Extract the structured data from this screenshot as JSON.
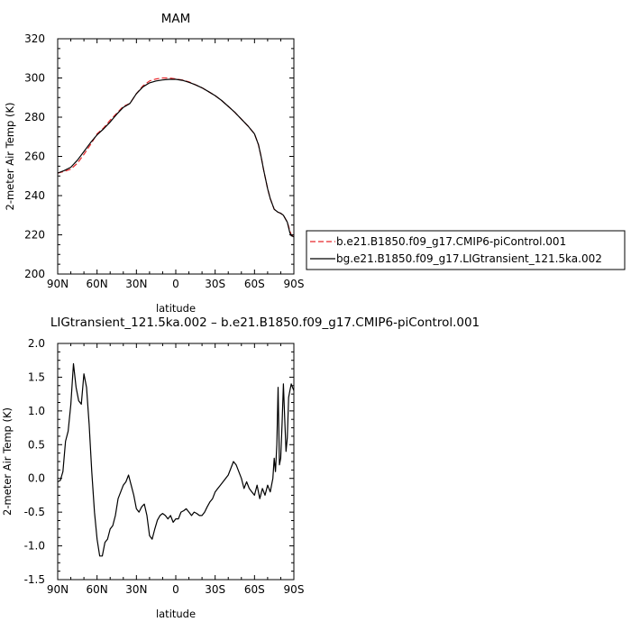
{
  "chart_data": [
    {
      "type": "line",
      "title": "MAM",
      "xlabel": "latitude",
      "ylabel": "2-meter Air Temp (K)",
      "x_unit": "degrees latitude (positive = N, negative = S)",
      "xlim": [
        90,
        -90
      ],
      "ylim": [
        200,
        320
      ],
      "xticks": [
        {
          "value": 90,
          "label": "90N"
        },
        {
          "value": 60,
          "label": "60N"
        },
        {
          "value": 30,
          "label": "30N"
        },
        {
          "value": 0,
          "label": "0"
        },
        {
          "value": -30,
          "label": "30S"
        },
        {
          "value": -60,
          "label": "60S"
        },
        {
          "value": -90,
          "label": "90S"
        }
      ],
      "yticks": [
        200,
        220,
        240,
        260,
        280,
        300,
        320
      ],
      "grid": false,
      "legend_position": "right",
      "series": [
        {
          "name": "b.e21.B1850.f09_g17.CMIP6-piControl.001",
          "color": "#e8262a",
          "dash": "dashed",
          "x": [
            90,
            85,
            80,
            75,
            70,
            65,
            60,
            55,
            50,
            45,
            40,
            35,
            30,
            25,
            20,
            15,
            10,
            5,
            0,
            -5,
            -10,
            -15,
            -20,
            -25,
            -30,
            -35,
            -40,
            -45,
            -50,
            -55,
            -60,
            -63,
            -65,
            -67,
            -70,
            -72,
            -75,
            -78,
            -80,
            -82,
            -85,
            -87,
            -88,
            -90
          ],
          "y": [
            251.5,
            252.3,
            253.5,
            256.5,
            261.0,
            266.0,
            271.5,
            274.5,
            278.5,
            282.0,
            285.5,
            287.0,
            292.0,
            296.0,
            298.5,
            299.5,
            300.0,
            300.0,
            299.5,
            299.0,
            298.0,
            296.5,
            295.0,
            293.0,
            291.0,
            288.5,
            285.5,
            282.5,
            279.0,
            275.5,
            271.5,
            266.0,
            260.0,
            253.0,
            243.5,
            238.5,
            233.0,
            231.5,
            231.0,
            230.0,
            226.5,
            222.0,
            220.0,
            219.5
          ]
        },
        {
          "name": "bg.e21.B1850.f09_g17.LIGtransient_121.5ka.002",
          "color": "#000000",
          "dash": "solid",
          "x": [
            90,
            85,
            80,
            75,
            70,
            65,
            60,
            55,
            50,
            45,
            40,
            35,
            30,
            25,
            20,
            15,
            10,
            5,
            0,
            -5,
            -10,
            -15,
            -20,
            -25,
            -30,
            -35,
            -40,
            -45,
            -50,
            -55,
            -60,
            -63,
            -65,
            -67,
            -70,
            -72,
            -75,
            -78,
            -80,
            -82,
            -85,
            -87,
            -88,
            -90
          ],
          "y": [
            251.5,
            252.8,
            254.5,
            258.0,
            262.5,
            267.0,
            271.0,
            274.0,
            277.5,
            281.5,
            285.0,
            287.0,
            292.0,
            295.5,
            297.5,
            298.5,
            299.0,
            299.3,
            299.3,
            298.8,
            297.8,
            296.5,
            295.0,
            293.0,
            291.0,
            288.5,
            285.5,
            282.5,
            279.0,
            275.5,
            271.5,
            266.0,
            260.0,
            253.0,
            243.5,
            238.5,
            233.0,
            231.5,
            231.0,
            230.0,
            226.5,
            221.0,
            219.5,
            219.0
          ]
        }
      ]
    },
    {
      "type": "line",
      "title": "LIGtransient_121.5ka.002 – b.e21.B1850.f09_g17.CMIP6-piControl.001",
      "xlabel": "latitude",
      "ylabel": "2-meter Air Temp (K)",
      "x_unit": "degrees latitude (positive = N, negative = S)",
      "xlim": [
        90,
        -90
      ],
      "ylim": [
        -1.5,
        2.0
      ],
      "xticks": [
        {
          "value": 90,
          "label": "90N"
        },
        {
          "value": 60,
          "label": "60N"
        },
        {
          "value": 30,
          "label": "30N"
        },
        {
          "value": 0,
          "label": "0"
        },
        {
          "value": -30,
          "label": "30S"
        },
        {
          "value": -60,
          "label": "60S"
        },
        {
          "value": -90,
          "label": "90S"
        }
      ],
      "yticks": [
        {
          "value": -1.5,
          "label": "-1.5"
        },
        {
          "value": -1.0,
          "label": "-1.0"
        },
        {
          "value": -0.5,
          "label": "-0.5"
        },
        {
          "value": 0.0,
          "label": "0.0"
        },
        {
          "value": 0.5,
          "label": "0.5"
        },
        {
          "value": 1.0,
          "label": "1.0"
        },
        {
          "value": 1.5,
          "label": "1.5"
        },
        {
          "value": 2.0,
          "label": "2.0"
        }
      ],
      "grid": false,
      "series": [
        {
          "color": "#000000",
          "dash": "solid",
          "x": [
            90,
            88,
            86,
            84,
            82,
            80,
            78,
            76,
            74,
            72,
            70,
            68,
            66,
            64,
            62,
            60,
            58,
            56,
            54,
            52,
            50,
            48,
            46,
            44,
            42,
            40,
            38,
            36,
            34,
            32,
            30,
            28,
            26,
            24,
            22,
            20,
            18,
            16,
            14,
            12,
            10,
            8,
            6,
            4,
            2,
            0,
            -2,
            -4,
            -6,
            -8,
            -10,
            -12,
            -14,
            -16,
            -18,
            -20,
            -22,
            -24,
            -26,
            -28,
            -30,
            -32,
            -34,
            -36,
            -38,
            -40,
            -42,
            -44,
            -46,
            -48,
            -50,
            -52,
            -54,
            -56,
            -58,
            -60,
            -62,
            -64,
            -66,
            -68,
            -70,
            -72,
            -74,
            -75,
            -76,
            -77,
            -78,
            -79,
            -80,
            -81,
            -82,
            -83,
            -84,
            -85,
            -86,
            -87,
            -88,
            -89,
            -90
          ],
          "y": [
            -0.05,
            -0.03,
            0.1,
            0.55,
            0.7,
            1.1,
            1.7,
            1.35,
            1.15,
            1.1,
            1.55,
            1.35,
            0.8,
            0.1,
            -0.5,
            -0.9,
            -1.15,
            -1.15,
            -0.95,
            -0.9,
            -0.75,
            -0.7,
            -0.55,
            -0.3,
            -0.2,
            -0.1,
            -0.05,
            0.05,
            -0.1,
            -0.25,
            -0.45,
            -0.5,
            -0.42,
            -0.38,
            -0.55,
            -0.85,
            -0.9,
            -0.75,
            -0.62,
            -0.55,
            -0.52,
            -0.55,
            -0.6,
            -0.55,
            -0.65,
            -0.6,
            -0.6,
            -0.5,
            -0.48,
            -0.45,
            -0.5,
            -0.55,
            -0.5,
            -0.52,
            -0.55,
            -0.55,
            -0.5,
            -0.42,
            -0.35,
            -0.3,
            -0.2,
            -0.15,
            -0.1,
            -0.05,
            0.0,
            0.05,
            0.15,
            0.25,
            0.2,
            0.1,
            0.0,
            -0.15,
            -0.05,
            -0.15,
            -0.2,
            -0.25,
            -0.1,
            -0.3,
            -0.15,
            -0.25,
            -0.1,
            -0.2,
            0.0,
            0.3,
            0.1,
            0.5,
            1.35,
            0.2,
            0.3,
            0.8,
            1.4,
            0.9,
            0.4,
            0.6,
            1.2,
            1.3,
            1.4,
            1.35,
            1.3
          ]
        }
      ]
    }
  ]
}
